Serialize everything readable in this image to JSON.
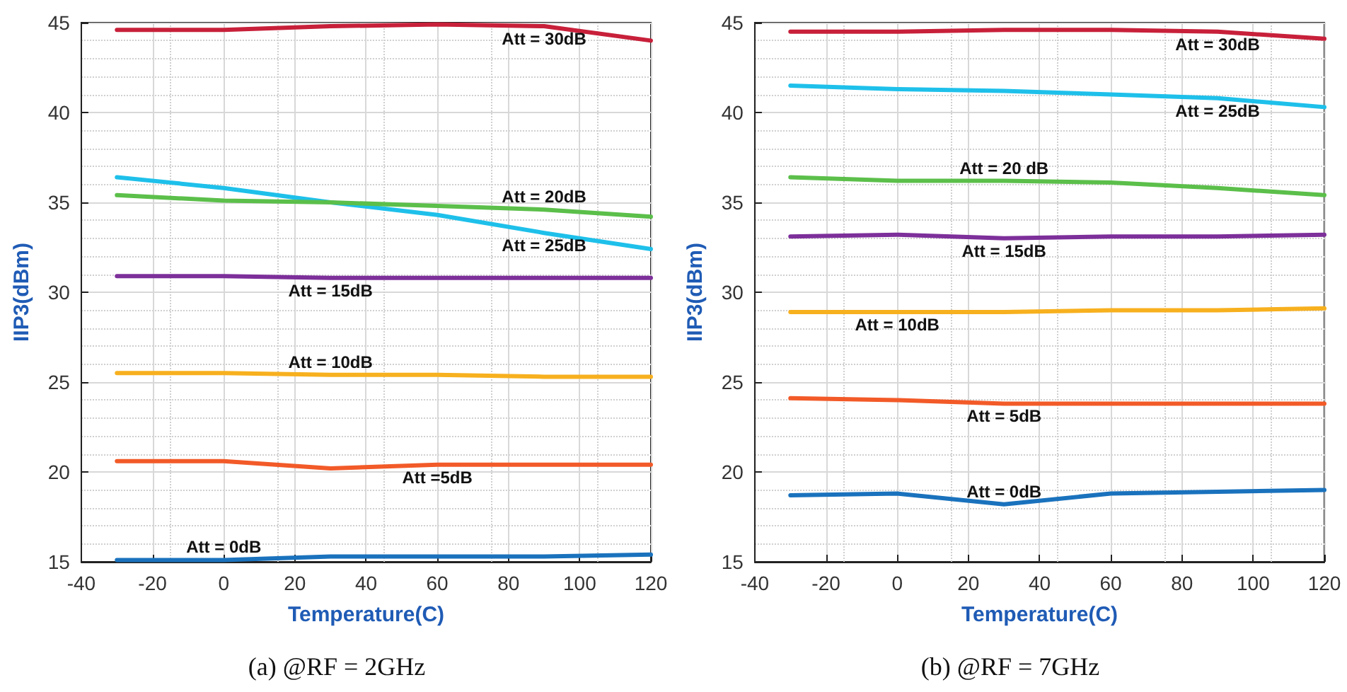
{
  "chart_data": [
    {
      "type": "line",
      "title": "(a) @RF = 2GHz",
      "xlabel": "Temperature(C)",
      "ylabel": "IIP3(dBm)",
      "x": [
        -30,
        0,
        30,
        60,
        90,
        120
      ],
      "xlim": [
        -40,
        120
      ],
      "xticks": [
        -40,
        -20,
        0,
        20,
        40,
        60,
        80,
        100,
        120
      ],
      "ylim": [
        15,
        45
      ],
      "yticks": [
        15,
        20,
        25,
        30,
        35,
        40,
        45
      ],
      "grid": true,
      "marker": "none",
      "line_style": "solid",
      "series": [
        {
          "name": "Att = 30dB",
          "color": "#c8203a",
          "values": [
            44.6,
            44.6,
            44.8,
            44.9,
            44.8,
            44.0
          ]
        },
        {
          "name": "Att = 25dB",
          "color": "#1ec0ea",
          "values": [
            36.4,
            35.8,
            35.0,
            34.3,
            33.3,
            32.4
          ]
        },
        {
          "name": "Att = 20dB",
          "color": "#5bbf4a",
          "values": [
            35.4,
            35.1,
            35.0,
            34.8,
            34.6,
            34.2
          ]
        },
        {
          "name": "Att = 15dB",
          "color": "#7d2f9a",
          "values": [
            30.9,
            30.9,
            30.8,
            30.8,
            30.8,
            30.8
          ]
        },
        {
          "name": "Att = 10dB",
          "color": "#f7b01e",
          "values": [
            25.5,
            25.5,
            25.4,
            25.4,
            25.3,
            25.3
          ]
        },
        {
          "name": "Att =5dB",
          "color": "#f25a28",
          "values": [
            20.6,
            20.6,
            20.2,
            20.4,
            20.4,
            20.4
          ]
        },
        {
          "name": "Att = 0dB",
          "color": "#1a72bd",
          "values": [
            15.1,
            15.1,
            15.3,
            15.3,
            15.3,
            15.4
          ]
        }
      ]
    },
    {
      "type": "line",
      "title": "(b) @RF = 7GHz",
      "xlabel": "Temperature(C)",
      "ylabel": "IIP3(dBm)",
      "x": [
        -30,
        0,
        30,
        60,
        90,
        120
      ],
      "xlim": [
        -40,
        120
      ],
      "xticks": [
        -40,
        -20,
        0,
        20,
        40,
        60,
        80,
        100,
        120
      ],
      "ylim": [
        15,
        45
      ],
      "yticks": [
        15,
        20,
        25,
        30,
        35,
        40,
        45
      ],
      "grid": true,
      "marker": "none",
      "line_style": "solid",
      "series": [
        {
          "name": "Att = 30dB",
          "color": "#c8203a",
          "values": [
            44.5,
            44.5,
            44.6,
            44.6,
            44.5,
            44.1
          ]
        },
        {
          "name": "Att = 25dB",
          "color": "#1ec0ea",
          "values": [
            41.5,
            41.3,
            41.2,
            41.0,
            40.8,
            40.3
          ]
        },
        {
          "name": "Att = 20 dB",
          "color": "#5bbf4a",
          "values": [
            36.4,
            36.2,
            36.2,
            36.1,
            35.8,
            35.4
          ]
        },
        {
          "name": "Att = 15dB",
          "color": "#7d2f9a",
          "values": [
            33.1,
            33.2,
            33.0,
            33.1,
            33.1,
            33.2
          ]
        },
        {
          "name": "Att = 10dB",
          "color": "#f7b01e",
          "values": [
            28.9,
            28.9,
            28.9,
            29.0,
            29.0,
            29.1
          ]
        },
        {
          "name": "Att = 5dB",
          "color": "#f25a28",
          "values": [
            24.1,
            24.0,
            23.8,
            23.8,
            23.8,
            23.8
          ]
        },
        {
          "name": "Att = 0dB",
          "color": "#1a72bd",
          "values": [
            18.7,
            18.8,
            18.2,
            18.8,
            18.9,
            19.0
          ]
        }
      ]
    }
  ]
}
